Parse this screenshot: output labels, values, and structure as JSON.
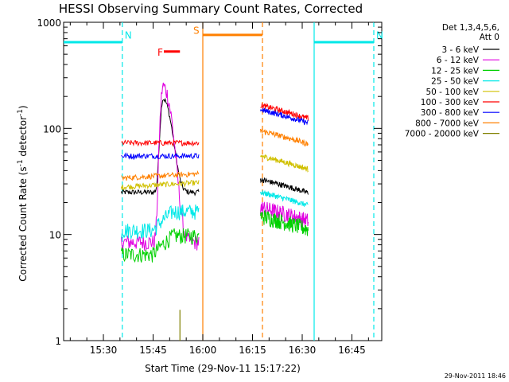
{
  "chart_data": {
    "type": "line",
    "title": "HESSI Observing Summary Count Rates, Corrected",
    "xlabel": "Start Time (29-Nov-11 15:17:22)",
    "ylabel": "Corrected Count Rate (s⁻¹ detector⁻¹)",
    "ylabel_main": "Corrected Count Rate (s",
    "ylabel_sup1": "-1",
    "ylabel_mid": " detector",
    "ylabel_sup2": "-1",
    "ylabel_end": ")",
    "y_scale": "log",
    "ylim": [
      1,
      1000
    ],
    "xlim_minutes": [
      15.3,
      16.9
    ],
    "x_ticks": [
      {
        "value": 15.5,
        "label": "15:30"
      },
      {
        "value": 15.75,
        "label": "15:45"
      },
      {
        "value": 16.0,
        "label": "16:00"
      },
      {
        "value": 16.25,
        "label": "16:15"
      },
      {
        "value": 16.5,
        "label": "16:30"
      },
      {
        "value": 16.75,
        "label": "16:45"
      }
    ],
    "y_ticks": [
      {
        "value": 1,
        "label": "1"
      },
      {
        "value": 10,
        "label": "10"
      },
      {
        "value": 100,
        "label": "100"
      },
      {
        "value": 1000,
        "label": "1000"
      }
    ],
    "legend_header": [
      "Det 1,3,4,5,6,",
      "Att 0"
    ],
    "series": [
      {
        "name": "3 - 6 keV",
        "color": "#000000"
      },
      {
        "name": "6 - 12 keV",
        "color": "#e000e0"
      },
      {
        "name": "12 - 25 keV",
        "color": "#00d000"
      },
      {
        "name": "25 - 50 keV",
        "color": "#00e8e8"
      },
      {
        "name": "50 - 100 keV",
        "color": "#d0c000"
      },
      {
        "name": "100 - 300 keV",
        "color": "#ff0000"
      },
      {
        "name": "300 - 800 keV",
        "color": "#0000ff"
      },
      {
        "name": "800 - 7000 keV",
        "color": "#ff8000"
      },
      {
        "name": "7000 - 20000 keV",
        "color": "#808000"
      }
    ],
    "segment_1": {
      "time_range": [
        15.59,
        15.98
      ],
      "levels": {
        "3 - 6 keV": 25,
        "6 - 12 keV": 8.5,
        "12 - 25 keV": 6.5,
        "25 - 50 keV": 11,
        "50 - 100 keV": 28,
        "100 - 300 keV": 73,
        "300 - 800 keV": 55,
        "800 - 7000 keV": 34
      },
      "flare_peak": {
        "time": 15.8,
        "3 - 6 keV": 190,
        "6 - 12 keV": 250
      }
    },
    "segment_2": {
      "time_range": [
        16.29,
        16.53
      ],
      "levels": {
        "3 - 6 keV": 33,
        "6 - 12 keV": 18,
        "12 - 25 keV": 15,
        "25 - 50 keV": 25,
        "50 - 100 keV": 55,
        "100 - 300 keV": 165,
        "300 - 800 keV": 150,
        "800 - 7000 keV": 95
      }
    },
    "markers": [
      {
        "label": "N",
        "color": "#00e8e8",
        "type": "night",
        "start": 15.3,
        "end": 15.595
      },
      {
        "label": "N",
        "color": "#00e8e8",
        "type": "night",
        "start": 16.56,
        "end": 16.86
      },
      {
        "label": "S",
        "color": "#ff8000",
        "type": "saa",
        "start": 16.0,
        "end": 16.3
      },
      {
        "label": "F",
        "color": "#ff0000",
        "type": "flare",
        "start": 15.78,
        "end": 15.885
      }
    ],
    "timestamp": "29-Nov-2011 18:46"
  }
}
